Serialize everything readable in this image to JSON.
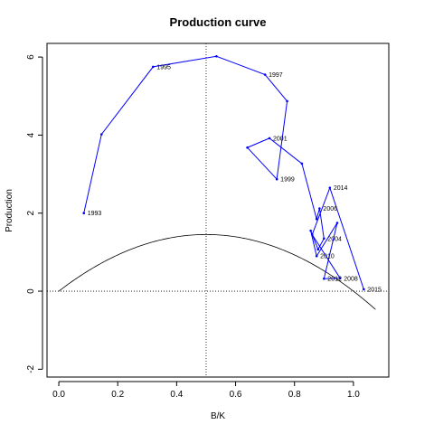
{
  "chart_data": {
    "type": "line",
    "title": "Production curve",
    "xlabel": "B/K",
    "ylabel": "Production",
    "xlim": [
      -0.04,
      1.12
    ],
    "ylim": [
      -2.2,
      6.35
    ],
    "grid": false,
    "x_ticks": [
      0.0,
      0.2,
      0.4,
      0.6,
      0.8,
      1.0
    ],
    "x_tick_labels": [
      "0.0",
      "0.2",
      "0.4",
      "0.6",
      "0.8",
      "1.0"
    ],
    "y_ticks": [
      -2,
      0,
      2,
      4,
      6
    ],
    "y_tick_labels": [
      "-2",
      "0",
      "2",
      "4",
      "6"
    ],
    "reference_lines": {
      "horizontal_y": 0,
      "vertical_x": 0.5
    },
    "curve": {
      "description_type": "logistic production function",
      "r": 0.4646,
      "k": 50,
      "x_range": [
        0.0,
        1.075
      ],
      "color": "#000000"
    },
    "series": [
      {
        "color": "#0000ff",
        "points": [
          {
            "x": 0.085,
            "y": 2.0,
            "label": "1993"
          },
          {
            "x": 0.145,
            "y": 4.02,
            "label": ""
          },
          {
            "x": 0.32,
            "y": 5.75,
            "label": "1995"
          },
          {
            "x": 0.535,
            "y": 6.02,
            "label": ""
          },
          {
            "x": 0.7,
            "y": 5.55,
            "label": "1997"
          },
          {
            "x": 0.775,
            "y": 4.87,
            "label": ""
          },
          {
            "x": 0.74,
            "y": 2.87,
            "label": "1999"
          },
          {
            "x": 0.64,
            "y": 3.68,
            "label": ""
          },
          {
            "x": 0.715,
            "y": 3.92,
            "label": "2001"
          },
          {
            "x": 0.825,
            "y": 3.27,
            "label": ""
          },
          {
            "x": 0.875,
            "y": 1.85,
            "label": ""
          },
          {
            "x": 0.885,
            "y": 2.12,
            "label": "2006"
          },
          {
            "x": 0.9,
            "y": 1.35,
            "label": "2004"
          },
          {
            "x": 0.88,
            "y": 1.07,
            "label": ""
          },
          {
            "x": 0.855,
            "y": 1.55,
            "label": ""
          },
          {
            "x": 0.875,
            "y": 0.9,
            "label": "2010"
          },
          {
            "x": 0.945,
            "y": 1.75,
            "label": ""
          },
          {
            "x": 0.9,
            "y": 0.32,
            "label": "2012"
          },
          {
            "x": 0.955,
            "y": 0.33,
            "label": "2008"
          },
          {
            "x": 0.86,
            "y": 1.45,
            "label": ""
          },
          {
            "x": 0.92,
            "y": 2.65,
            "label": "2014"
          },
          {
            "x": 1.035,
            "y": 0.05,
            "label": "2015"
          }
        ]
      }
    ]
  }
}
